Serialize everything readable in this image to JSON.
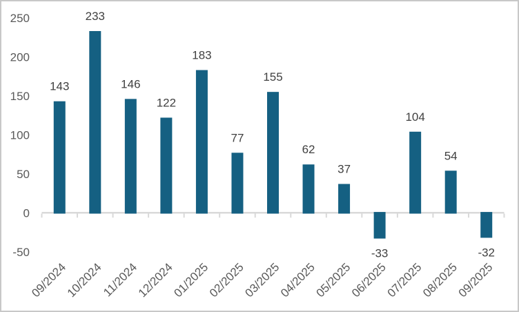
{
  "window": {
    "background": "#FFFFFF",
    "border_color": "#C8C8C8"
  },
  "chart_data": {
    "type": "bar",
    "categories": [
      "09/2024",
      "10/2024",
      "11/2024",
      "12/2024",
      "01/2025",
      "02/2025",
      "03/2025",
      "04/2025",
      "05/2025",
      "06/2025",
      "07/2025",
      "08/2025",
      "09/2025"
    ],
    "values": [
      143,
      233,
      146,
      122,
      183,
      77,
      155,
      62,
      37,
      -33,
      104,
      54,
      -32
    ],
    "y_ticks": [
      250,
      200,
      150,
      100,
      50,
      0,
      -50
    ],
    "ylim": [
      -50,
      250
    ],
    "grid": false,
    "legend": false,
    "data_labels_shown": true,
    "bar_color": "#156082",
    "axis_line_color": "#D9D9D9",
    "tick_label_color": "#595959",
    "data_label_color": "#404040",
    "x_tick_rotation_deg": 45
  }
}
